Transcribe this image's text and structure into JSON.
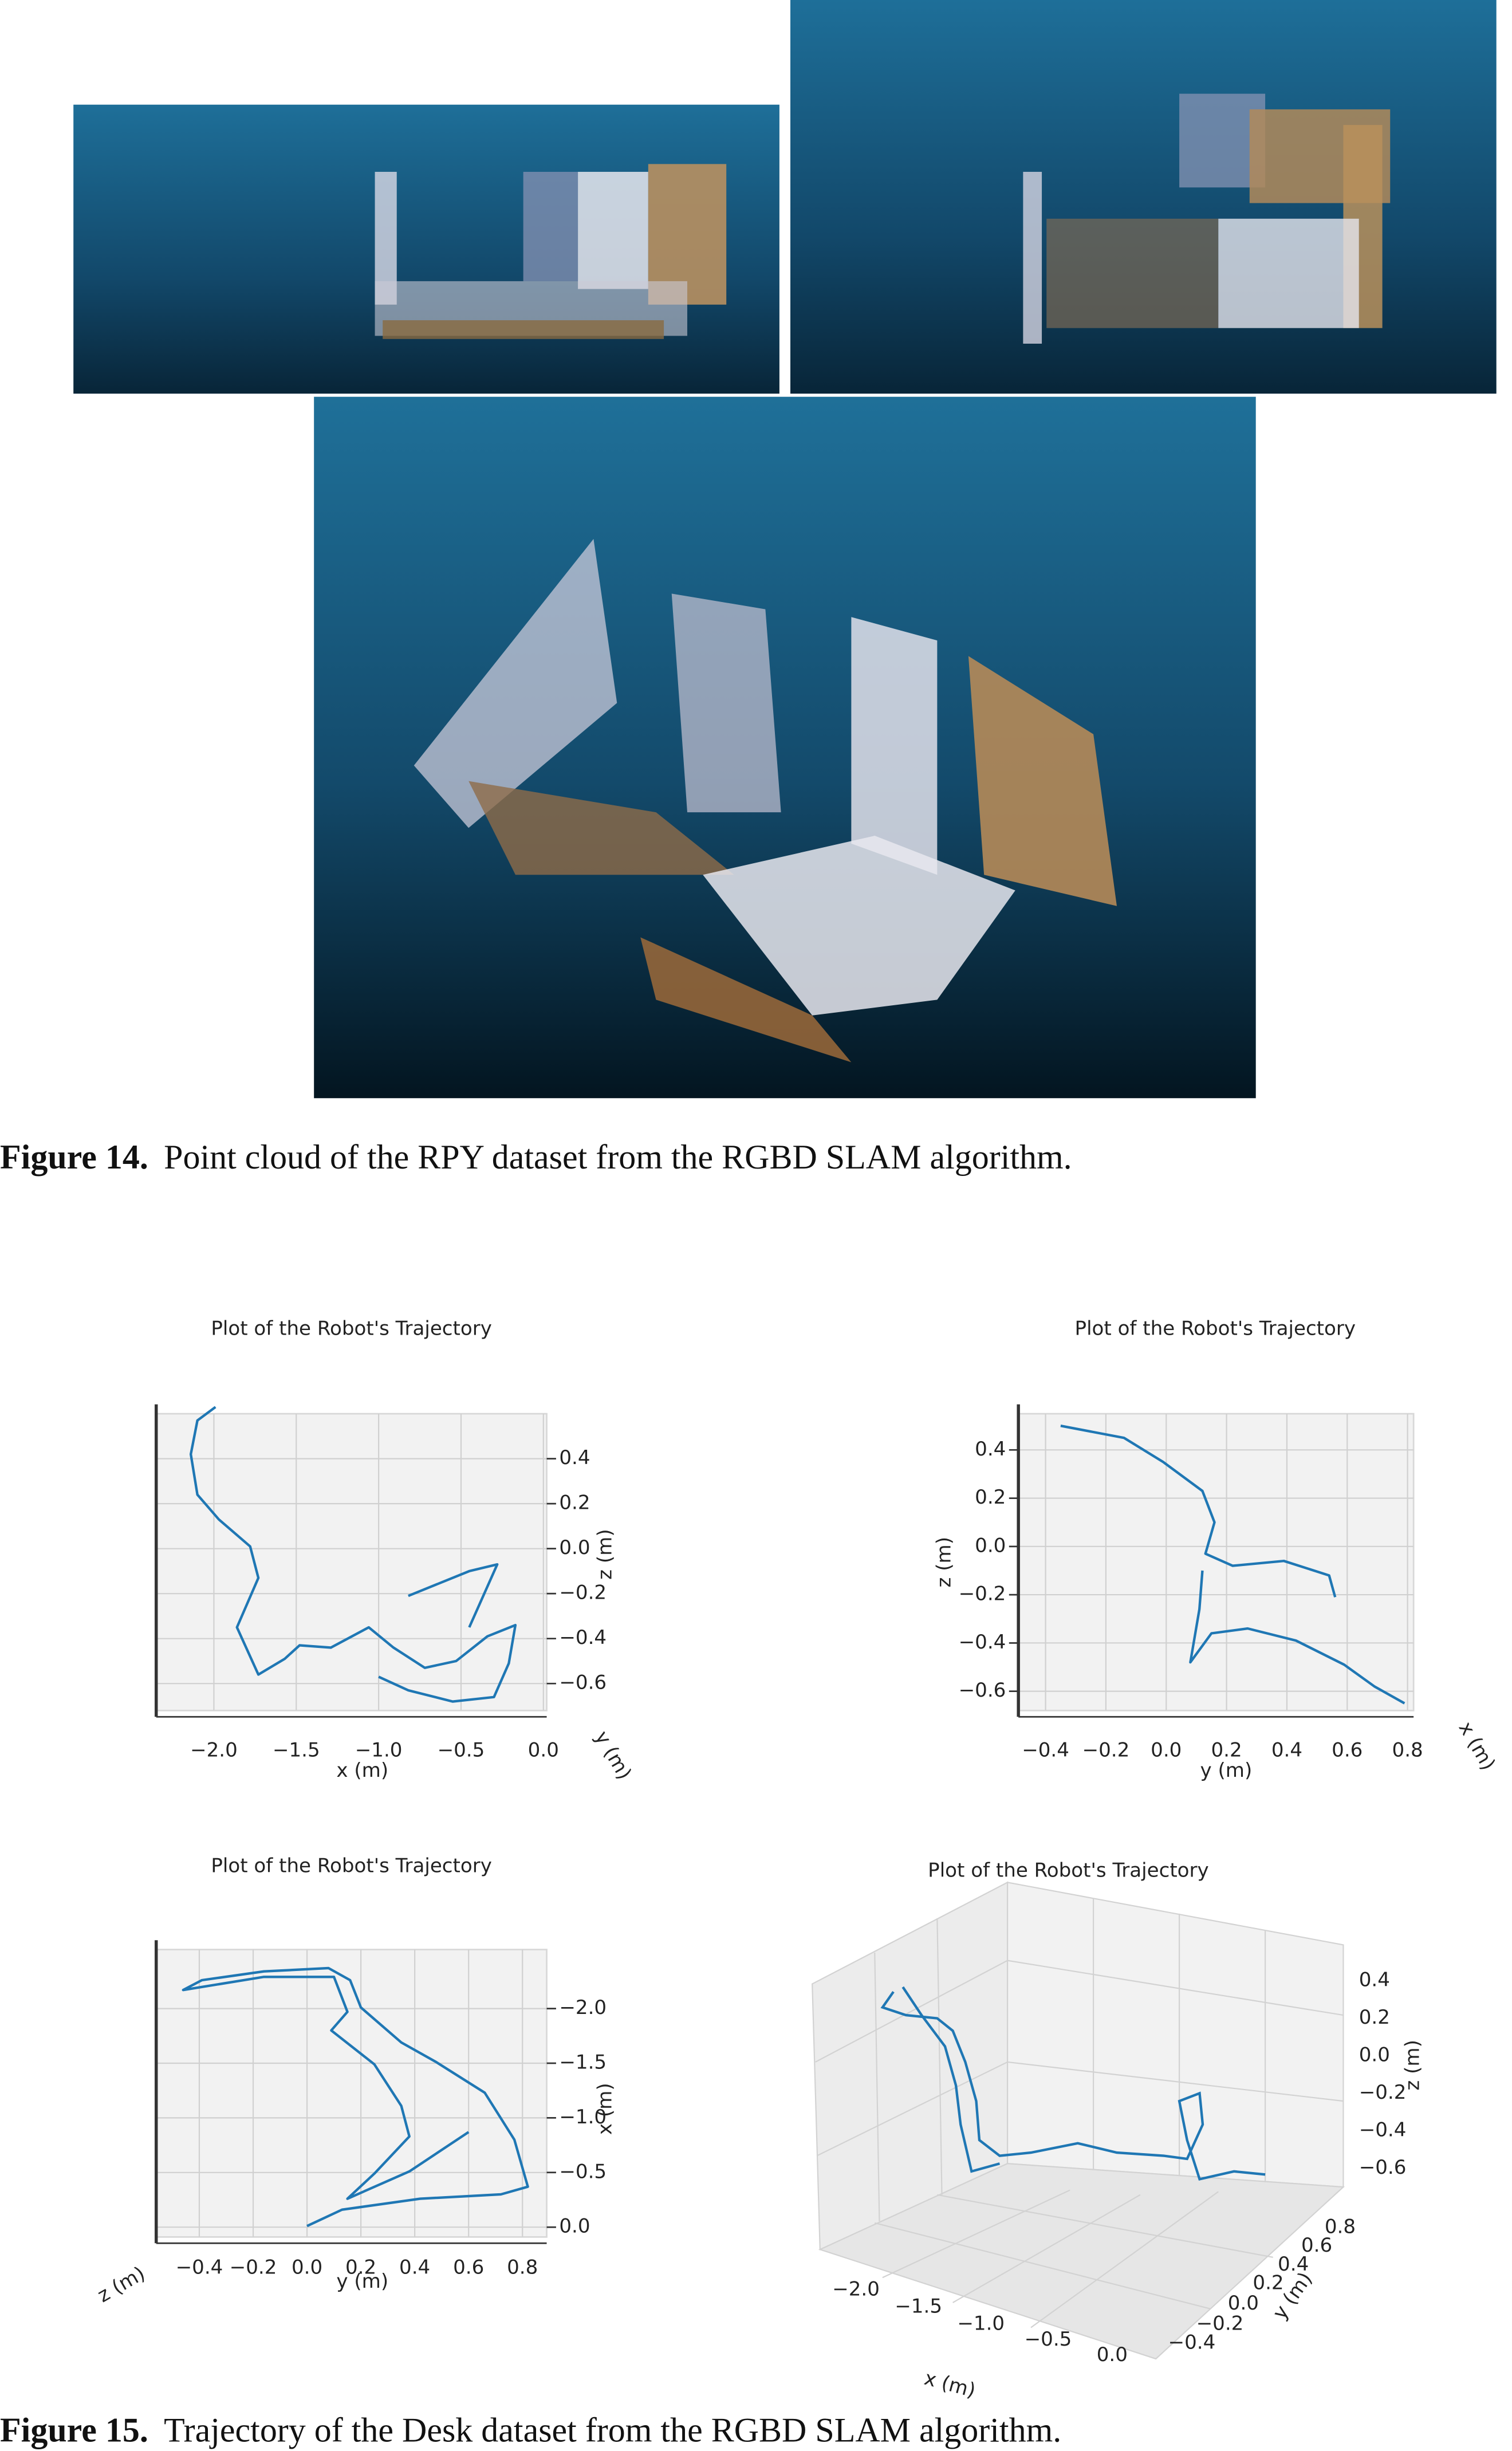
{
  "figures": [
    {
      "label": "Figure 14.",
      "caption": "Point cloud of the RPY dataset from the RGBD SLAM algorithm."
    },
    {
      "label": "Figure 15.",
      "caption": "Trajectory of the Desk dataset from the RGBD SLAM algorithm.",
      "plots": [
        {
          "type": "line",
          "title": "Plot of the Robot's Trajectory",
          "xlabel": "x (m)",
          "ylabel": "z (m)",
          "depth_label": "y (m)",
          "xlim": [
            -2.35,
            0.02
          ],
          "ylim": [
            -0.72,
            0.6
          ],
          "xticks": [
            {
              "value": -2,
              "label": "−2.0"
            },
            {
              "value": -1.5,
              "label": "−1.5"
            },
            {
              "value": -1,
              "label": "−1.0"
            },
            {
              "value": -0.5,
              "label": "−0.5"
            },
            {
              "value": 0,
              "label": "0.0"
            }
          ],
          "yticks": [
            0.4,
            0.2,
            {
              "value": 0,
              "label": "0.0"
            },
            {
              "value": -0.2,
              "label": "−0.2"
            },
            {
              "value": -0.4,
              "label": "−0.4"
            },
            {
              "value": -0.6,
              "label": "−0.6"
            }
          ],
          "grid": true,
          "series": [
            {
              "color": "#1f77b4",
              "x": [
                -1.99,
                -2.1,
                -2.14,
                -2.1,
                -1.97,
                -1.78,
                -1.73,
                -1.86,
                -1.73,
                -1.57,
                -1.48,
                -1.29,
                -1.06,
                -0.91,
                -0.72,
                -0.53,
                -0.34,
                -0.17,
                -0.21,
                -0.3,
                -0.55,
                -0.82,
                -1.0,
                null,
                -0.45,
                -0.28,
                -0.45,
                -0.82
              ],
              "y": [
                0.63,
                0.57,
                0.42,
                0.24,
                0.13,
                0.01,
                -0.13,
                -0.35,
                -0.56,
                -0.49,
                -0.43,
                -0.44,
                -0.35,
                -0.44,
                -0.53,
                -0.5,
                -0.39,
                -0.34,
                -0.51,
                -0.66,
                -0.68,
                -0.63,
                -0.57,
                null,
                -0.35,
                -0.07,
                -0.1,
                -0.21
              ]
            }
          ]
        },
        {
          "type": "line",
          "title": "Plot of the Robot's Trajectory",
          "xlabel": "y (m)",
          "ylabel": "z (m)",
          "depth_label": "x (m)",
          "xlim": [
            -0.49,
            0.82
          ],
          "ylim": [
            -0.68,
            0.55
          ],
          "xticks": [
            {
              "value": -0.4,
              "label": "−0.4"
            },
            {
              "value": -0.2,
              "label": "−0.2"
            },
            {
              "value": 0,
              "label": "0.0"
            },
            0.2,
            0.4,
            0.6,
            0.8
          ],
          "yticks": [
            0.4,
            0.2,
            {
              "value": 0,
              "label": "0.0"
            },
            {
              "value": -0.2,
              "label": "−0.2"
            },
            {
              "value": -0.4,
              "label": "−0.4"
            },
            {
              "value": -0.6,
              "label": "−0.6"
            }
          ],
          "grid": true,
          "series": [
            {
              "color": "#1f77b4",
              "x": [
                -0.35,
                -0.14,
                -0.01,
                0.12,
                0.16,
                0.13,
                0.22,
                0.39,
                0.54,
                0.56,
                null,
                0.12,
                0.11,
                0.08,
                0.15,
                0.27,
                0.43,
                0.59,
                0.69,
                0.79
              ],
              "y": [
                0.5,
                0.45,
                0.35,
                0.23,
                0.1,
                -0.03,
                -0.08,
                -0.06,
                -0.12,
                -0.21,
                null,
                -0.1,
                -0.26,
                -0.48,
                -0.36,
                -0.34,
                -0.39,
                -0.49,
                -0.58,
                -0.65
              ]
            }
          ]
        },
        {
          "type": "line",
          "title": "Plot of the Robot's Trajectory",
          "xlabel": "y (m)",
          "ylabel": "x (m)",
          "depth_label": "z (m)",
          "xlim": [
            -0.56,
            0.89
          ],
          "ylim": [
            0.09,
            -2.54
          ],
          "xticks": [
            {
              "value": -0.4,
              "label": "−0.4"
            },
            {
              "value": -0.2,
              "label": "−0.2"
            },
            {
              "value": 0,
              "label": "0.0"
            },
            0.2,
            0.4,
            0.6,
            0.8
          ],
          "yticks": [
            {
              "value": -2,
              "label": "−2.0"
            },
            {
              "value": -1.5,
              "label": "−1.5"
            },
            {
              "value": -1,
              "label": "−1.0"
            },
            {
              "value": -0.5,
              "label": "−0.5"
            },
            {
              "value": 0,
              "label": "0.0"
            }
          ],
          "grid": true,
          "series": [
            {
              "color": "#1f77b4",
              "x": [
                0.0,
                0.13,
                0.42,
                0.72,
                0.82,
                0.77,
                0.66,
                0.48,
                0.35,
                0.2,
                0.16,
                0.08,
                -0.16,
                -0.39,
                -0.46,
                -0.16,
                0.1,
                0.15,
                0.09,
                0.25,
                0.35,
                0.38,
                0.25,
                0.15,
                0.38,
                0.6
              ],
              "y": [
                -0.01,
                -0.16,
                -0.26,
                -0.3,
                -0.37,
                -0.8,
                -1.23,
                -1.51,
                -1.69,
                -2.01,
                -2.26,
                -2.37,
                -2.34,
                -2.26,
                -2.17,
                -2.29,
                -2.29,
                -1.97,
                -1.8,
                -1.49,
                -1.11,
                -0.83,
                -0.49,
                -0.26,
                -0.51,
                -0.87
              ]
            }
          ]
        },
        {
          "type": "3d",
          "title": "Plot of the Robot's Trajectory",
          "xlabel": "x (m)",
          "ylabel": "y (m)",
          "zlabel": "z (m)",
          "xticks": [
            {
              "value": -2,
              "label": "−2.0"
            },
            {
              "value": -1.5,
              "label": "−1.5"
            },
            {
              "value": -1,
              "label": "−1.0"
            },
            {
              "value": -0.5,
              "label": "−0.5"
            },
            {
              "value": 0,
              "label": "0.0"
            }
          ],
          "yticks": [
            {
              "value": -0.4,
              "label": "−0.4"
            },
            {
              "value": -0.2,
              "label": "−0.2"
            },
            {
              "value": 0,
              "label": "0.0"
            },
            0.2,
            0.4,
            0.6,
            0.8
          ],
          "zticks": [
            0.4,
            0.2,
            {
              "value": 0,
              "label": "0.0"
            },
            {
              "value": -0.2,
              "label": "−0.2"
            },
            {
              "value": -0.4,
              "label": "−0.4"
            },
            {
              "value": -0.6,
              "label": "−0.6"
            }
          ]
        }
      ]
    }
  ]
}
